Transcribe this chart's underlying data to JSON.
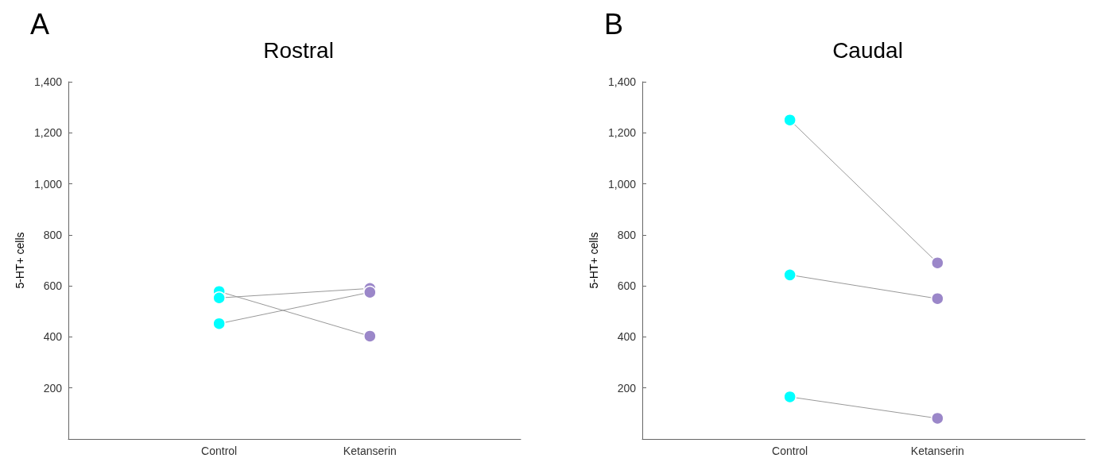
{
  "chart_data": [
    {
      "type": "line",
      "title": "Rostral",
      "annotations": [
        "A"
      ],
      "ylabel": "5-HT+ cells",
      "categories": [
        null,
        "Control",
        "Ketanserin",
        null
      ],
      "ylim": [
        0,
        1400
      ],
      "yticks": [
        200,
        400,
        600,
        800,
        {
          "value": 1000,
          "label": "1,000"
        },
        {
          "value": 1200,
          "label": "1,200"
        },
        {
          "value": 1400,
          "label": "1,400"
        }
      ],
      "marker": "circle",
      "line_style": "solid",
      "series": [
        {
          "color": "#999999",
          "colors": [
            null,
            "#00ffff",
            "#9b87c9",
            null
          ],
          "values": [
            null,
            578,
            403,
            null
          ]
        },
        {
          "color": "#999999",
          "colors": [
            null,
            "#00ffff",
            "#9b87c9",
            null
          ],
          "values": [
            null,
            553,
            590,
            null
          ]
        },
        {
          "color": "#999999",
          "colors": [
            null,
            "#00ffff",
            "#9b87c9",
            null
          ],
          "values": [
            null,
            452,
            575,
            null
          ]
        }
      ]
    },
    {
      "type": "line",
      "title": "Caudal",
      "annotations": [
        "B"
      ],
      "ylabel": "5-HT+ cells",
      "categories": [
        null,
        "Control",
        "Ketanserin",
        null
      ],
      "ylim": [
        0,
        1400
      ],
      "yticks": [
        200,
        400,
        600,
        800,
        {
          "value": 1000,
          "label": "1,000"
        },
        {
          "value": 1200,
          "label": "1,200"
        },
        {
          "value": 1400,
          "label": "1,400"
        }
      ],
      "marker": "circle",
      "line_style": "solid",
      "series": [
        {
          "color": "#999999",
          "colors": [
            null,
            "#00ffff",
            "#9b87c9",
            null
          ],
          "values": [
            null,
            1250,
            690,
            null
          ]
        },
        {
          "color": "#999999",
          "colors": [
            null,
            "#00ffff",
            "#9b87c9",
            null
          ],
          "values": [
            null,
            643,
            550,
            null
          ]
        },
        {
          "color": "#999999",
          "colors": [
            null,
            "#00ffff",
            "#9b87c9",
            null
          ],
          "values": [
            null,
            165,
            81,
            null
          ]
        }
      ]
    }
  ]
}
